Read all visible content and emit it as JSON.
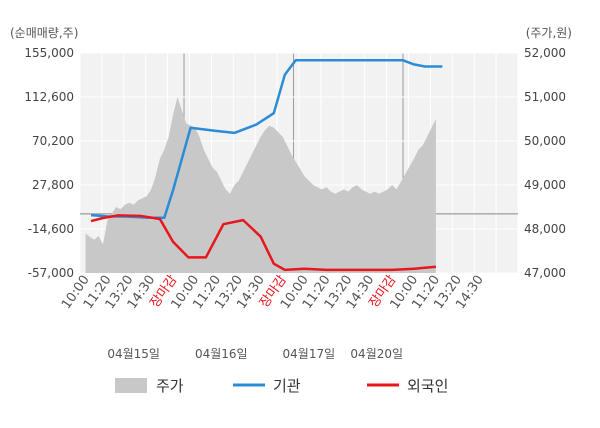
{
  "chart_data": {
    "type": "line",
    "left_axis_title": "(순매매량,주)",
    "right_axis_title": "(주가,원)",
    "left_ticks": [
      "155,000",
      "112,600",
      "70,200",
      "27,800",
      "-14,600",
      "-57,000"
    ],
    "left_ticks_values": [
      155000,
      112600,
      70200,
      27800,
      -14600,
      -57000
    ],
    "right_ticks": [
      "52,000",
      "51,000",
      "50,000",
      "49,000",
      "48,000",
      "47,000"
    ],
    "right_ticks_values": [
      52000,
      51000,
      50000,
      49000,
      48000,
      47000
    ],
    "left_ylim": [
      -57000,
      155000
    ],
    "right_ylim": [
      47000,
      52000
    ],
    "x_slot_count": 20,
    "x_tick_labels": [
      "10:00",
      "11:20",
      "13:20",
      "14:30",
      "장마감",
      "10:00",
      "11:20",
      "13:20",
      "14:30",
      "장마감",
      "10:00",
      "11:20",
      "13:20",
      "14:30",
      "장마감",
      "10:00",
      "11:20",
      "13:20",
      "14:30"
    ],
    "x_tick_close_flags": [
      false,
      false,
      false,
      false,
      true,
      false,
      false,
      false,
      false,
      true,
      false,
      false,
      false,
      false,
      true,
      false,
      false,
      false,
      false
    ],
    "day_labels": [
      "04월15일",
      "04월16일",
      "04월17일",
      "04월20일"
    ],
    "day_label_positions": [
      2.2,
      6.2,
      10.2,
      13.3
    ],
    "day_dividers": [
      4.5,
      9.5,
      14.5
    ],
    "series": [
      {
        "name": "주가",
        "color": "#c8c8c8",
        "axis": "right",
        "points": [
          [
            0.0,
            47900
          ],
          [
            0.2,
            47820
          ],
          [
            0.4,
            47760
          ],
          [
            0.6,
            47840
          ],
          [
            0.8,
            47650
          ],
          [
            1.0,
            48200
          ],
          [
            1.2,
            48350
          ],
          [
            1.4,
            48500
          ],
          [
            1.6,
            48450
          ],
          [
            1.8,
            48550
          ],
          [
            2.0,
            48600
          ],
          [
            2.2,
            48550
          ],
          [
            2.4,
            48650
          ],
          [
            2.6,
            48700
          ],
          [
            2.8,
            48750
          ],
          [
            3.0,
            48900
          ],
          [
            3.2,
            49200
          ],
          [
            3.4,
            49600
          ],
          [
            3.6,
            49800
          ],
          [
            3.8,
            50100
          ],
          [
            4.0,
            50600
          ],
          [
            4.2,
            51000
          ],
          [
            4.4,
            50700
          ],
          [
            4.6,
            50400
          ],
          [
            5.0,
            50300
          ],
          [
            5.2,
            50100
          ],
          [
            5.4,
            49800
          ],
          [
            5.6,
            49600
          ],
          [
            5.8,
            49400
          ],
          [
            6.0,
            49300
          ],
          [
            6.2,
            49100
          ],
          [
            6.4,
            48900
          ],
          [
            6.6,
            48800
          ],
          [
            6.8,
            49000
          ],
          [
            7.0,
            49100
          ],
          [
            7.2,
            49300
          ],
          [
            7.4,
            49500
          ],
          [
            7.6,
            49700
          ],
          [
            7.8,
            49900
          ],
          [
            8.0,
            50100
          ],
          [
            8.2,
            50250
          ],
          [
            8.4,
            50350
          ],
          [
            8.6,
            50300
          ],
          [
            8.8,
            50200
          ],
          [
            9.0,
            50100
          ],
          [
            9.2,
            49900
          ],
          [
            9.4,
            49700
          ],
          [
            10.0,
            49200
          ],
          [
            10.2,
            49100
          ],
          [
            10.4,
            49000
          ],
          [
            10.6,
            48950
          ],
          [
            10.8,
            48900
          ],
          [
            11.0,
            48950
          ],
          [
            11.2,
            48850
          ],
          [
            11.4,
            48800
          ],
          [
            11.6,
            48850
          ],
          [
            11.8,
            48900
          ],
          [
            12.0,
            48850
          ],
          [
            12.2,
            48950
          ],
          [
            12.4,
            49000
          ],
          [
            12.6,
            48900
          ],
          [
            12.8,
            48850
          ],
          [
            13.0,
            48800
          ],
          [
            13.2,
            48850
          ],
          [
            13.4,
            48800
          ],
          [
            13.6,
            48850
          ],
          [
            13.8,
            48900
          ],
          [
            14.0,
            49000
          ],
          [
            14.2,
            48900
          ],
          [
            15.0,
            49600
          ],
          [
            15.2,
            49800
          ],
          [
            15.4,
            49900
          ],
          [
            15.6,
            50100
          ],
          [
            15.8,
            50300
          ],
          [
            16.0,
            50500
          ]
        ]
      },
      {
        "name": "기관",
        "color": "#2b8cd6",
        "axis": "left",
        "points": [
          [
            0.25,
            -1200
          ],
          [
            1.0,
            -2500
          ],
          [
            2.0,
            -2700
          ],
          [
            2.8,
            -3600
          ],
          [
            3.6,
            -3800
          ],
          [
            4.0,
            23000
          ],
          [
            4.8,
            83000
          ],
          [
            5.9,
            80000
          ],
          [
            6.8,
            78000
          ],
          [
            7.8,
            86000
          ],
          [
            8.6,
            97000
          ],
          [
            9.1,
            134000
          ],
          [
            9.6,
            148000
          ],
          [
            10.5,
            148000
          ],
          [
            11.5,
            148000
          ],
          [
            12.5,
            148000
          ],
          [
            13.5,
            148000
          ],
          [
            14.5,
            148000
          ],
          [
            15.0,
            144000
          ],
          [
            15.5,
            142000
          ],
          [
            16.0,
            142000
          ],
          [
            16.3,
            142000
          ]
        ]
      },
      {
        "name": "외국인",
        "color": "#e8161d",
        "axis": "left",
        "points": [
          [
            0.25,
            -7000
          ],
          [
            0.8,
            -4000
          ],
          [
            1.5,
            -1500
          ],
          [
            2.5,
            -2000
          ],
          [
            3.4,
            -5000
          ],
          [
            4.0,
            -27000
          ],
          [
            4.7,
            -42000
          ],
          [
            5.5,
            -42000
          ],
          [
            6.3,
            -10000
          ],
          [
            7.2,
            -6000
          ],
          [
            8.0,
            -22000
          ],
          [
            8.6,
            -48000
          ],
          [
            9.1,
            -54000
          ],
          [
            10.0,
            -53000
          ],
          [
            11.0,
            -54000
          ],
          [
            12.0,
            -54000
          ],
          [
            13.0,
            -54000
          ],
          [
            14.0,
            -54000
          ],
          [
            15.0,
            -53000
          ],
          [
            16.0,
            -51000
          ]
        ]
      }
    ],
    "legend": [
      "주가",
      "기관",
      "외국인"
    ],
    "grid": true,
    "legend_position": "bottom"
  }
}
